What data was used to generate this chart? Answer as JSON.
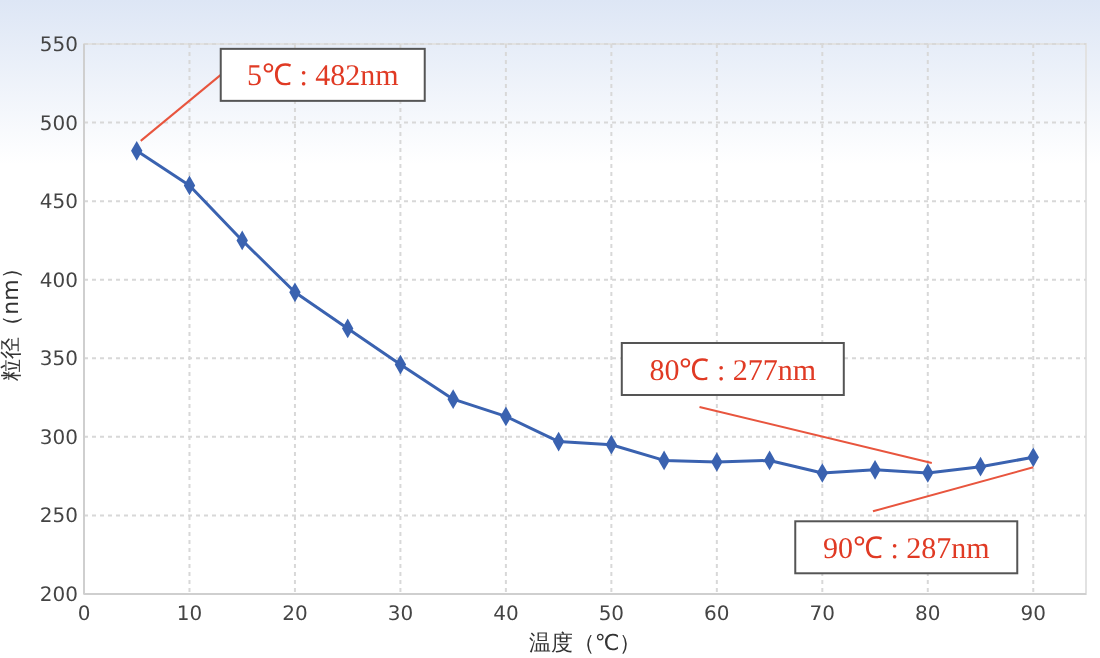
{
  "chart_data": {
    "type": "line",
    "xlabel": "温度（℃）",
    "ylabel": "粒径（nm）",
    "x": [
      5,
      10,
      15,
      20,
      25,
      30,
      35,
      40,
      45,
      50,
      55,
      60,
      65,
      70,
      75,
      80,
      85,
      90
    ],
    "series": [
      {
        "color": "#3a62b0",
        "values": [
          482,
          460,
          425,
          392,
          369,
          346,
          324,
          313,
          297,
          295,
          285,
          284,
          285,
          277,
          279,
          277,
          281,
          287
        ]
      }
    ],
    "xlim": [
      0,
      95
    ],
    "xticks": [
      0,
      10,
      20,
      30,
      40,
      50,
      60,
      70,
      80,
      90
    ],
    "ylim": [
      200,
      550
    ],
    "yticks": [
      200,
      250,
      300,
      350,
      400,
      450,
      500,
      550
    ],
    "grid": true,
    "marker": "diamond",
    "line_style": "solid",
    "annotations": [
      {
        "text": "5℃ : 482nm",
        "x": 5,
        "y": 482
      },
      {
        "text": "80℃ : 277nm",
        "x": 80,
        "y": 277
      },
      {
        "text": "90℃ : 287nm",
        "x": 90,
        "y": 287
      }
    ]
  }
}
